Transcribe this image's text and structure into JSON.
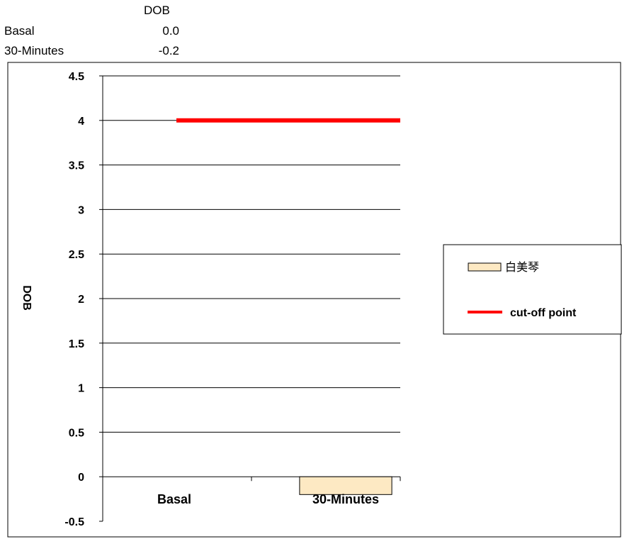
{
  "data_table": {
    "header": "DOB",
    "rows": [
      {
        "label": "Basal",
        "value": "0.0"
      },
      {
        "label": "30-Minutes",
        "value": "-0.2"
      }
    ]
  },
  "chart_data": {
    "type": "bar",
    "categories": [
      "Basal",
      "30-Minutes"
    ],
    "series": [
      {
        "name": "白美琴",
        "values": [
          0.0,
          -0.2
        ],
        "color": "#fde9c3"
      }
    ],
    "reference_line": {
      "name": "cut-off point",
      "value": 4,
      "color": "#ff0000"
    },
    "ylabel": "DOB",
    "ylim": [
      -0.5,
      4.5
    ],
    "yticks": [
      "4.5",
      "4",
      "3.5",
      "3",
      "2.5",
      "2",
      "1.5",
      "1",
      "0.5",
      "0",
      "-0.5"
    ],
    "grid": true,
    "legend_position": "right"
  }
}
